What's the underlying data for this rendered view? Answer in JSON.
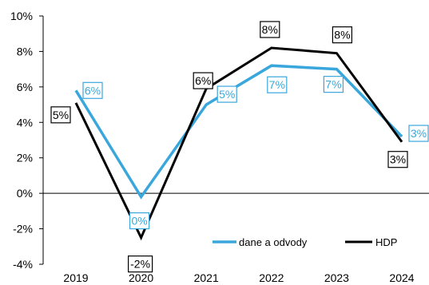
{
  "chart_data": {
    "type": "line",
    "title": "",
    "xlabel": "",
    "ylabel": "",
    "categories": [
      "2019",
      "2020",
      "2021",
      "2022",
      "2023",
      "2024"
    ],
    "ylim": [
      -4,
      10
    ],
    "yticks": [
      -4,
      -2,
      0,
      2,
      4,
      6,
      8,
      10
    ],
    "ytick_labels": [
      "-4%",
      "-2%",
      "0%",
      "2%",
      "4%",
      "6%",
      "8%",
      "10%"
    ],
    "grid": false,
    "legend_position": "bottom-right",
    "series": [
      {
        "name": "dane a odvody",
        "color": "#3aa7dc",
        "values": [
          5.8,
          -0.2,
          5.0,
          7.2,
          7.0,
          3.2
        ],
        "data_labels": [
          "6%",
          "0%",
          "5%",
          "7%",
          "7%",
          "3%"
        ]
      },
      {
        "name": "HDP",
        "color": "#000000",
        "values": [
          5.1,
          -2.5,
          5.9,
          8.2,
          7.9,
          2.9
        ],
        "data_labels": [
          "5%",
          "-2%",
          "6%",
          "8%",
          "8%",
          "3%"
        ]
      }
    ]
  }
}
